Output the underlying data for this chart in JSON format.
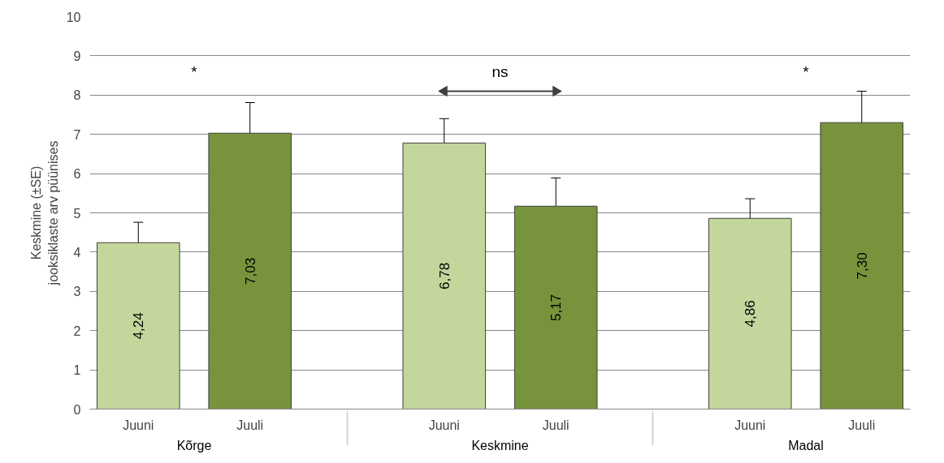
{
  "chart_data": {
    "type": "bar",
    "ylabel": "Keskmine (±SE)\njooksiklaste arv püünises",
    "categories": [
      "Kõrge",
      "Keskmine",
      "Madal"
    ],
    "series": [
      {
        "name": "Juuni",
        "color": "#c3d69b",
        "values": [
          4.24,
          6.78,
          4.86
        ],
        "errors": [
          0.52,
          0.62,
          0.5
        ],
        "value_labels": [
          "4,24",
          "6,78",
          "4,86"
        ]
      },
      {
        "name": "Juuli",
        "color": "#77933c",
        "values": [
          7.03,
          5.17,
          7.3
        ],
        "errors": [
          0.78,
          0.72,
          0.8
        ],
        "value_labels": [
          "7,03",
          "5,17",
          "7,30"
        ]
      }
    ],
    "ylim": [
      0,
      10
    ],
    "yticks": [
      0,
      1,
      2,
      3,
      4,
      5,
      6,
      7,
      8,
      9,
      10
    ],
    "grid": "y",
    "annotations": [
      "*",
      "ns",
      "*"
    ]
  }
}
